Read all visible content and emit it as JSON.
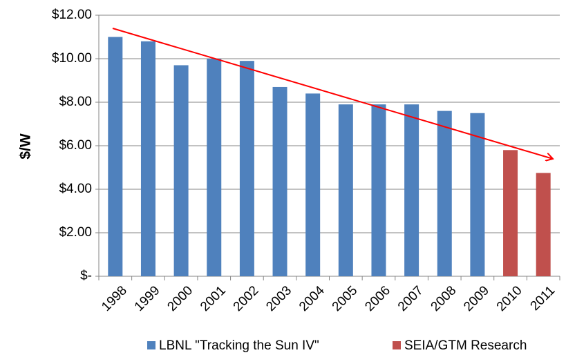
{
  "chart_data": {
    "type": "bar",
    "y_label": "$/W",
    "categories": [
      "1998",
      "1999",
      "2000",
      "2001",
      "2002",
      "2003",
      "2004",
      "2005",
      "2006",
      "2007",
      "2008",
      "2009",
      "2010",
      "2011"
    ],
    "series": [
      {
        "name": "LBNL \"Tracking the Sun IV\"",
        "color": "#4f81bd",
        "values": [
          11.0,
          10.8,
          9.7,
          10.0,
          9.9,
          8.7,
          8.4,
          7.9,
          7.9,
          7.9,
          7.6,
          7.5,
          null,
          null
        ]
      },
      {
        "name": "SEIA/GTM Research",
        "color": "#c0504d",
        "values": [
          null,
          null,
          null,
          null,
          null,
          null,
          null,
          null,
          null,
          null,
          null,
          null,
          5.8,
          4.75
        ]
      }
    ],
    "ylim": [
      0,
      12
    ],
    "yticks": [
      {
        "value": 0,
        "label": "$-"
      },
      {
        "value": 2,
        "label": "$2.00"
      },
      {
        "value": 4,
        "label": "$4.00"
      },
      {
        "value": 6,
        "label": "$6.00"
      },
      {
        "value": 8,
        "label": "$8.00"
      },
      {
        "value": 10,
        "label": "$10.00"
      },
      {
        "value": 12,
        "label": "$12.00"
      }
    ],
    "grid": true
  }
}
